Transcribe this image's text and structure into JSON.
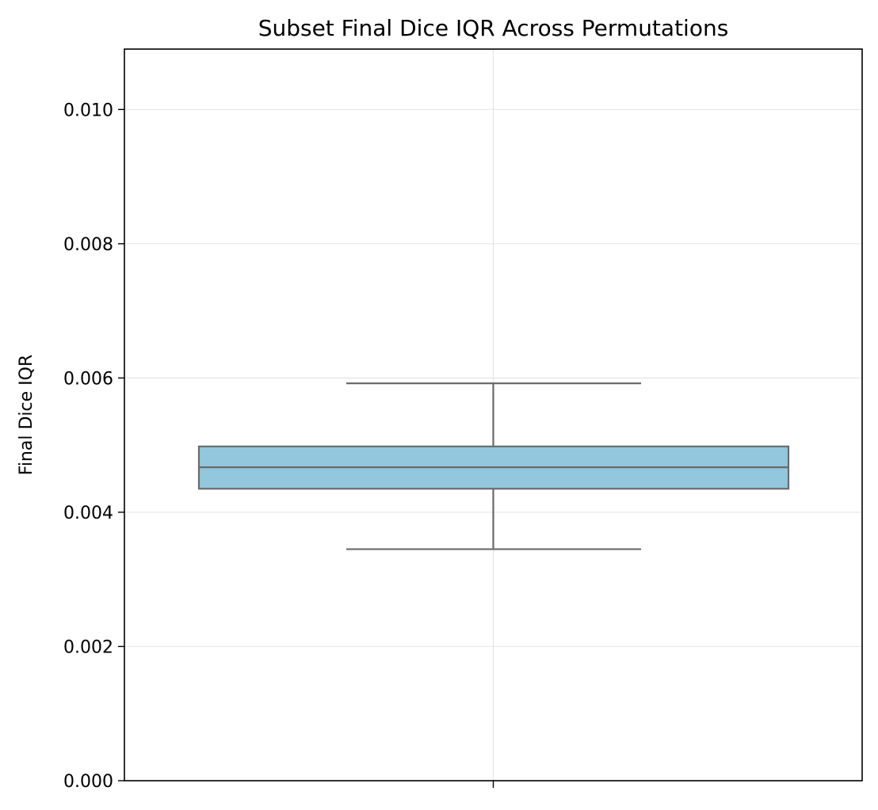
{
  "chart_data": {
    "type": "box",
    "title": "Subset Final Dice IQR Across Permutations",
    "xlabel": "",
    "ylabel": "Final Dice IQR",
    "ylim": [
      0.0,
      0.0109
    ],
    "yticks": [
      "0.000",
      "0.002",
      "0.004",
      "0.006",
      "0.008",
      "0.010"
    ],
    "ytick_values": [
      0.0,
      0.002,
      0.004,
      0.006,
      0.008,
      0.01
    ],
    "grid": true,
    "series": [
      {
        "whisker_low": 0.00345,
        "q1": 0.00435,
        "median": 0.00467,
        "q3": 0.00498,
        "whisker_high": 0.00592
      }
    ],
    "colors": {
      "box_fill": "#92c7de",
      "box_edge": "#6b6b6b",
      "grid": "#e6e6e6"
    }
  }
}
